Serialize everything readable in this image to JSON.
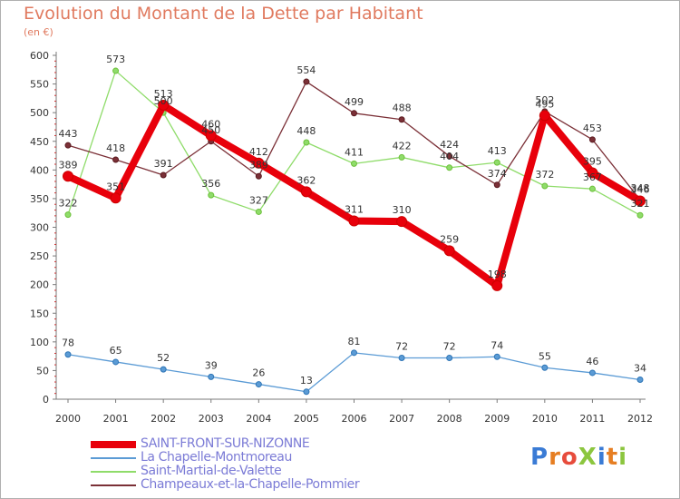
{
  "title": "Evolution du Montant de la Dette par Habitant",
  "unit_label": "(en €)",
  "logo": {
    "text": "ProXiti",
    "colors": [
      "#3a7bd5",
      "#e67e22",
      "#e74c3c",
      "#8cc63f",
      "#3a7bd5",
      "#e67e22",
      "#8cc63f"
    ]
  },
  "chart_data": {
    "type": "line",
    "x": [
      "2000",
      "2001",
      "2002",
      "2003",
      "2004",
      "2005",
      "2006",
      "2007",
      "2008",
      "2009",
      "2010",
      "2011",
      "2012"
    ],
    "ylim": [
      0,
      600
    ],
    "yticks": [
      0,
      50,
      100,
      150,
      200,
      250,
      300,
      350,
      400,
      450,
      500,
      550,
      600
    ],
    "grid": false,
    "legend_position": "bottom",
    "series": [
      {
        "name": "SAINT-FRONT-SUR-NIZONNE",
        "color": "#e8000b",
        "marker": "#cc0000",
        "width": 8,
        "values": [
          389,
          351,
          513,
          460,
          412,
          362,
          311,
          310,
          259,
          198,
          495,
          395,
          346
        ]
      },
      {
        "name": "La Chapelle-Montmoreau",
        "color": "#5b9bd5",
        "marker": "#2e75b6",
        "width": 1.3,
        "values": [
          78,
          65,
          52,
          39,
          26,
          13,
          81,
          72,
          72,
          74,
          55,
          46,
          34
        ]
      },
      {
        "name": "Saint-Martial-de-Valette",
        "color": "#8fdc6a",
        "marker": "#6cc03a",
        "width": 1.3,
        "values": [
          322,
          573,
          500,
          356,
          327,
          448,
          411,
          422,
          404,
          413,
          372,
          367,
          321
        ]
      },
      {
        "name": "Champeaux-et-la-Chapelle-Pommier",
        "color": "#7b3037",
        "marker": "#5a1a1f",
        "width": 1.3,
        "values": [
          443,
          418,
          391,
          450,
          389,
          554,
          499,
          488,
          424,
          374,
          502,
          453,
          348
        ]
      }
    ]
  }
}
